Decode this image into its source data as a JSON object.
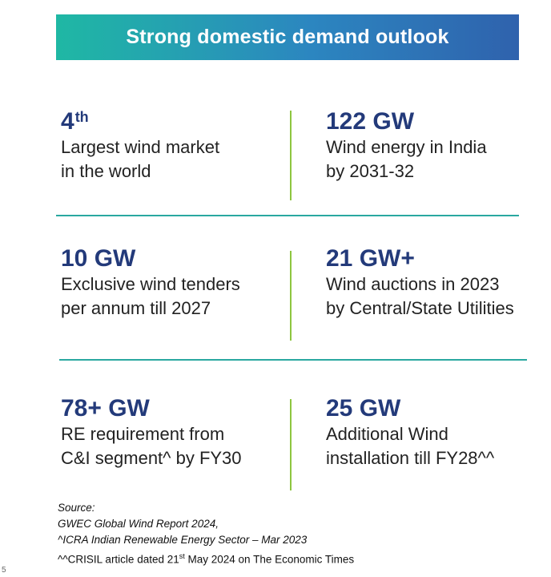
{
  "banner": {
    "title": "Strong domestic demand outlook"
  },
  "stats": [
    {
      "value": "4",
      "sup": "th",
      "line1": "Largest wind market",
      "line2": "in the world"
    },
    {
      "value": "122 GW",
      "line1": "Wind energy in India",
      "line2": "by 2031-32"
    },
    {
      "value": "10 GW",
      "line1": "Exclusive wind tenders",
      "line2": "per annum till 2027"
    },
    {
      "value": "21 GW+",
      "line1": "Wind auctions in 2023",
      "line2": "by Central/State Utilities"
    },
    {
      "value": "78+ GW",
      "line1": "RE requirement from",
      "line2": "C&I segment^ by FY30"
    },
    {
      "value": "25 GW",
      "line1": "Additional Wind",
      "line2": "installation till FY28^^"
    }
  ],
  "source": {
    "label": "Source:",
    "line1": "GWEC Global Wind Report 2024,",
    "line2": "^ICRA Indian Renewable Energy Sector – Mar 2023",
    "line3_pre": "^^CRISIL article dated 21",
    "line3_sup": "st",
    "line3_post": " May 2024 on The Economic Times"
  },
  "page_number": "5",
  "colors": {
    "banner_start": "#1fb8a4",
    "banner_end": "#2f62ad",
    "value_text": "#233a7a",
    "vertical_divider": "#8dc63f",
    "horizontal_divider": "#2aa8a0"
  }
}
